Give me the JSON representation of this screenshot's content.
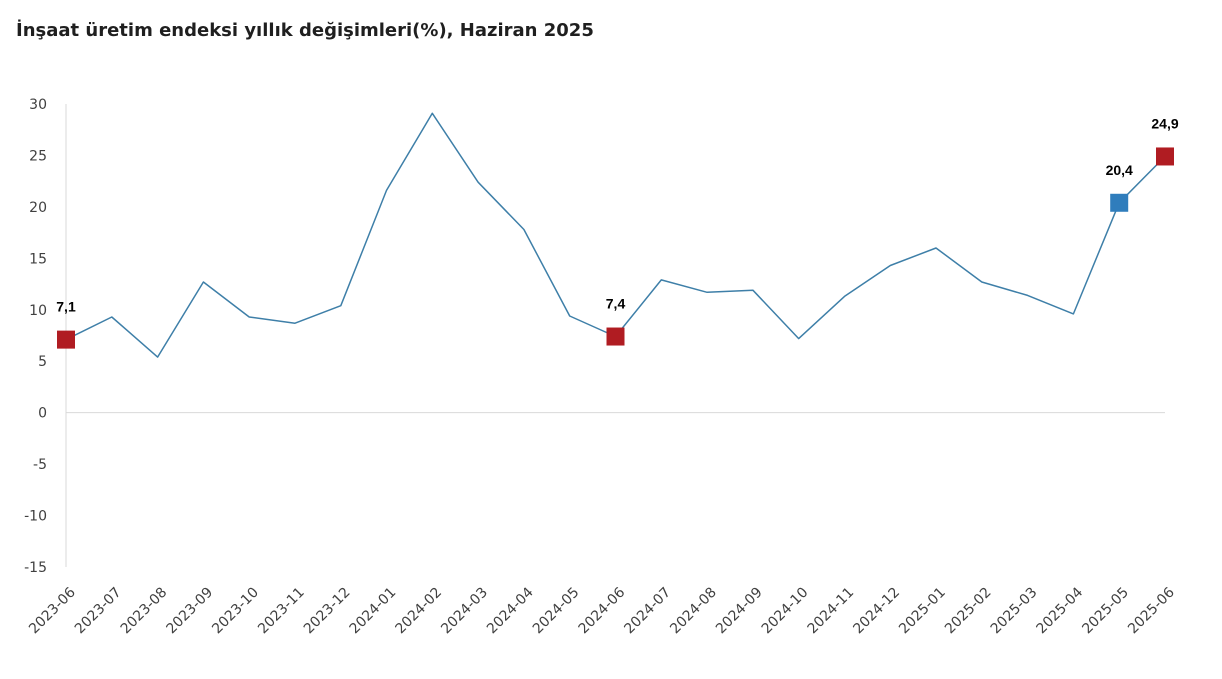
{
  "title": "İnşaat üretim endeksi yıllık değişimleri(%), Haziran 2025",
  "chart_data": {
    "type": "line",
    "title": "İnşaat üretim endeksi yıllık değişimleri(%), Haziran 2025",
    "xlabel": "",
    "ylabel": "",
    "ylim": [
      -15,
      30
    ],
    "yticks": [
      "30",
      "25",
      "20",
      "15",
      "10",
      "5",
      "0",
      "-5",
      "-10",
      "-15"
    ],
    "grid": false,
    "legend": "none",
    "categories": [
      "2023-06",
      "2023-07",
      "2023-08",
      "2023-09",
      "2023-10",
      "2023-11",
      "2023-12",
      "2024-01",
      "2024-02",
      "2024-03",
      "2024-04",
      "2024-05",
      "2024-06",
      "2024-07",
      "2024-08",
      "2024-09",
      "2024-10",
      "2024-11",
      "2024-12",
      "2025-01",
      "2025-02",
      "2025-03",
      "2025-04",
      "2025-05",
      "2025-06"
    ],
    "series": [
      {
        "values": [
          7.1,
          9.3,
          5.4,
          12.7,
          9.3,
          8.7,
          10.4,
          21.6,
          29.1,
          22.4,
          17.8,
          9.4,
          7.4,
          12.9,
          11.7,
          11.9,
          7.2,
          11.3,
          14.3,
          16.0,
          12.7,
          11.4,
          9.6,
          20.4,
          24.9
        ],
        "color": "#3e7fa8"
      }
    ],
    "highlights": [
      {
        "index": 0,
        "label": "7,1",
        "color": "#b01c22"
      },
      {
        "index": 12,
        "label": "7,4",
        "color": "#b01c22"
      },
      {
        "index": 23,
        "label": "20,4",
        "color": "#2f7dbc"
      },
      {
        "index": 24,
        "label": "24,9",
        "color": "#b01c22"
      }
    ],
    "axis_color": "#d9d9d9"
  }
}
